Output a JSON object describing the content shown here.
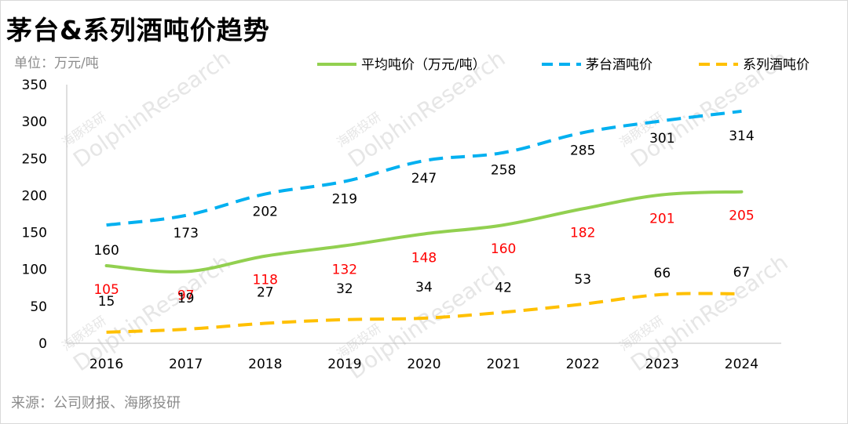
{
  "title": "茅台&系列酒吨价趋势",
  "unit_label": "单位：万元/吨",
  "source": "来源：公司财报、海豚投研",
  "watermark": {
    "brand": "DolphinResearch",
    "cn": "海豚投研"
  },
  "colors": {
    "avg": "#92d050",
    "moutai": "#00b0f0",
    "series": "#ffc000",
    "label_red": "#ff0000",
    "label_black": "#000000"
  },
  "chart_data": {
    "type": "line",
    "categories": [
      "2016",
      "2017",
      "2018",
      "2019",
      "2020",
      "2021",
      "2022",
      "2023",
      "2024"
    ],
    "ylim": [
      0,
      350
    ],
    "yticks": [
      "0",
      "50",
      "100",
      "150",
      "200",
      "250",
      "300",
      "350"
    ],
    "legend_position": "top",
    "grid": false,
    "series": [
      {
        "name": "平均吨价（万元/吨）",
        "style": "solid",
        "values": [
          105,
          97,
          118,
          132,
          148,
          160,
          182,
          201,
          205
        ]
      },
      {
        "name": "茅台酒吨价",
        "style": "dashed",
        "values": [
          160,
          173,
          202,
          219,
          247,
          258,
          285,
          301,
          314
        ]
      },
      {
        "name": "系列酒吨价",
        "style": "dashed",
        "values": [
          15,
          19,
          27,
          32,
          34,
          42,
          53,
          66,
          67
        ]
      }
    ]
  }
}
